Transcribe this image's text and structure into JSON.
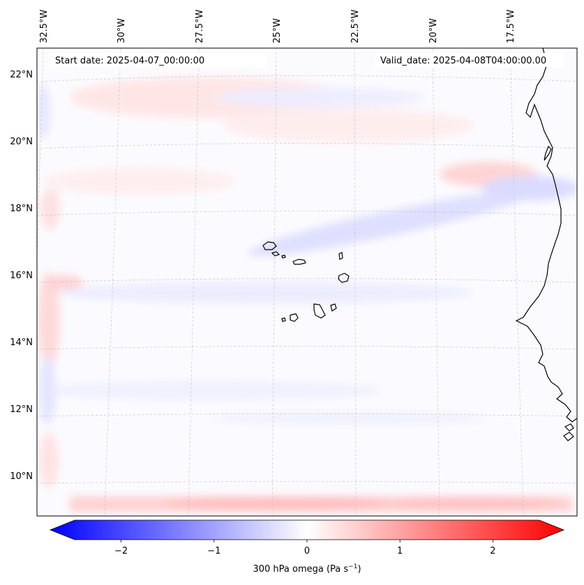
{
  "map": {
    "start_date": "Start date: 2025-04-07_00:00:00",
    "valid_date": "Valid_date: 2025-04-08T04:00:00.00",
    "lon_labels": [
      "32.5°W",
      "30°W",
      "27.5°W",
      "25°W",
      "22.5°W",
      "20°W",
      "17.5°W"
    ],
    "lat_labels": [
      "22°N",
      "20°N",
      "18°N",
      "16°N",
      "14°N",
      "12°N",
      "10°N"
    ]
  },
  "colorbar": {
    "label_text": "300 hPa omega (Pa s",
    "label_sup": "−1",
    "label_close": ")",
    "ticks": [
      "−2",
      "−1",
      "0",
      "1",
      "2"
    ],
    "tick_values": [
      -2,
      -1,
      0,
      1,
      2
    ],
    "range": [
      -2.5,
      2.5
    ],
    "colors": {
      "negative": "#0000ff",
      "zero": "#ffffff",
      "positive": "#ff0000"
    }
  }
}
